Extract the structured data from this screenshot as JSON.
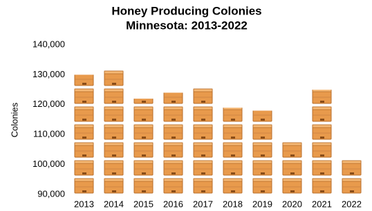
{
  "chart_data": {
    "type": "pictograph",
    "title": "Honey Producing Colonies",
    "subtitle": "Minnesota: 2013-2022",
    "y_label": "Colonies",
    "categories": [
      "2013",
      "2014",
      "2015",
      "2016",
      "2017",
      "2018",
      "2019",
      "2020",
      "2021",
      "2022"
    ],
    "values": [
      130000,
      132000,
      122000,
      124000,
      126000,
      119000,
      118000,
      108000,
      125000,
      102000
    ],
    "color": "#e89a4c",
    "ylim": [
      90000,
      140000
    ],
    "yticks": [
      {
        "value": 90000,
        "label": "90,000"
      },
      {
        "value": 100000,
        "label": "100,000"
      },
      {
        "value": 110000,
        "label": "110,000"
      },
      {
        "value": 120000,
        "label": "120,000"
      },
      {
        "value": 130000,
        "label": "130,000"
      },
      {
        "value": 140000,
        "label": "140,000"
      }
    ]
  }
}
